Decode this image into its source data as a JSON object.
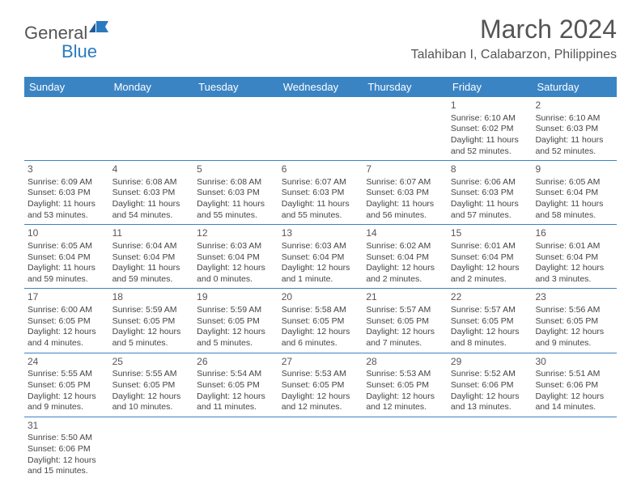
{
  "brand": {
    "name1": "General",
    "name2": "Blue"
  },
  "header": {
    "month": "March 2024",
    "location": "Talahiban I, Calabarzon, Philippines"
  },
  "colors": {
    "header_bg": "#3b84c4",
    "header_text": "#ffffff",
    "border": "#3b84c4",
    "text": "#444444",
    "title": "#555555"
  },
  "day_names": [
    "Sunday",
    "Monday",
    "Tuesday",
    "Wednesday",
    "Thursday",
    "Friday",
    "Saturday"
  ],
  "weeks": [
    [
      {
        "blank": true
      },
      {
        "blank": true
      },
      {
        "blank": true
      },
      {
        "blank": true
      },
      {
        "blank": true
      },
      {
        "n": "1",
        "sr": "Sunrise: 6:10 AM",
        "ss": "Sunset: 6:02 PM",
        "dl": "Daylight: 11 hours and 52 minutes."
      },
      {
        "n": "2",
        "sr": "Sunrise: 6:10 AM",
        "ss": "Sunset: 6:03 PM",
        "dl": "Daylight: 11 hours and 52 minutes."
      }
    ],
    [
      {
        "n": "3",
        "sr": "Sunrise: 6:09 AM",
        "ss": "Sunset: 6:03 PM",
        "dl": "Daylight: 11 hours and 53 minutes."
      },
      {
        "n": "4",
        "sr": "Sunrise: 6:08 AM",
        "ss": "Sunset: 6:03 PM",
        "dl": "Daylight: 11 hours and 54 minutes."
      },
      {
        "n": "5",
        "sr": "Sunrise: 6:08 AM",
        "ss": "Sunset: 6:03 PM",
        "dl": "Daylight: 11 hours and 55 minutes."
      },
      {
        "n": "6",
        "sr": "Sunrise: 6:07 AM",
        "ss": "Sunset: 6:03 PM",
        "dl": "Daylight: 11 hours and 55 minutes."
      },
      {
        "n": "7",
        "sr": "Sunrise: 6:07 AM",
        "ss": "Sunset: 6:03 PM",
        "dl": "Daylight: 11 hours and 56 minutes."
      },
      {
        "n": "8",
        "sr": "Sunrise: 6:06 AM",
        "ss": "Sunset: 6:03 PM",
        "dl": "Daylight: 11 hours and 57 minutes."
      },
      {
        "n": "9",
        "sr": "Sunrise: 6:05 AM",
        "ss": "Sunset: 6:04 PM",
        "dl": "Daylight: 11 hours and 58 minutes."
      }
    ],
    [
      {
        "n": "10",
        "sr": "Sunrise: 6:05 AM",
        "ss": "Sunset: 6:04 PM",
        "dl": "Daylight: 11 hours and 59 minutes."
      },
      {
        "n": "11",
        "sr": "Sunrise: 6:04 AM",
        "ss": "Sunset: 6:04 PM",
        "dl": "Daylight: 11 hours and 59 minutes."
      },
      {
        "n": "12",
        "sr": "Sunrise: 6:03 AM",
        "ss": "Sunset: 6:04 PM",
        "dl": "Daylight: 12 hours and 0 minutes."
      },
      {
        "n": "13",
        "sr": "Sunrise: 6:03 AM",
        "ss": "Sunset: 6:04 PM",
        "dl": "Daylight: 12 hours and 1 minute."
      },
      {
        "n": "14",
        "sr": "Sunrise: 6:02 AM",
        "ss": "Sunset: 6:04 PM",
        "dl": "Daylight: 12 hours and 2 minutes."
      },
      {
        "n": "15",
        "sr": "Sunrise: 6:01 AM",
        "ss": "Sunset: 6:04 PM",
        "dl": "Daylight: 12 hours and 2 minutes."
      },
      {
        "n": "16",
        "sr": "Sunrise: 6:01 AM",
        "ss": "Sunset: 6:04 PM",
        "dl": "Daylight: 12 hours and 3 minutes."
      }
    ],
    [
      {
        "n": "17",
        "sr": "Sunrise: 6:00 AM",
        "ss": "Sunset: 6:05 PM",
        "dl": "Daylight: 12 hours and 4 minutes."
      },
      {
        "n": "18",
        "sr": "Sunrise: 5:59 AM",
        "ss": "Sunset: 6:05 PM",
        "dl": "Daylight: 12 hours and 5 minutes."
      },
      {
        "n": "19",
        "sr": "Sunrise: 5:59 AM",
        "ss": "Sunset: 6:05 PM",
        "dl": "Daylight: 12 hours and 5 minutes."
      },
      {
        "n": "20",
        "sr": "Sunrise: 5:58 AM",
        "ss": "Sunset: 6:05 PM",
        "dl": "Daylight: 12 hours and 6 minutes."
      },
      {
        "n": "21",
        "sr": "Sunrise: 5:57 AM",
        "ss": "Sunset: 6:05 PM",
        "dl": "Daylight: 12 hours and 7 minutes."
      },
      {
        "n": "22",
        "sr": "Sunrise: 5:57 AM",
        "ss": "Sunset: 6:05 PM",
        "dl": "Daylight: 12 hours and 8 minutes."
      },
      {
        "n": "23",
        "sr": "Sunrise: 5:56 AM",
        "ss": "Sunset: 6:05 PM",
        "dl": "Daylight: 12 hours and 9 minutes."
      }
    ],
    [
      {
        "n": "24",
        "sr": "Sunrise: 5:55 AM",
        "ss": "Sunset: 6:05 PM",
        "dl": "Daylight: 12 hours and 9 minutes."
      },
      {
        "n": "25",
        "sr": "Sunrise: 5:55 AM",
        "ss": "Sunset: 6:05 PM",
        "dl": "Daylight: 12 hours and 10 minutes."
      },
      {
        "n": "26",
        "sr": "Sunrise: 5:54 AM",
        "ss": "Sunset: 6:05 PM",
        "dl": "Daylight: 12 hours and 11 minutes."
      },
      {
        "n": "27",
        "sr": "Sunrise: 5:53 AM",
        "ss": "Sunset: 6:05 PM",
        "dl": "Daylight: 12 hours and 12 minutes."
      },
      {
        "n": "28",
        "sr": "Sunrise: 5:53 AM",
        "ss": "Sunset: 6:05 PM",
        "dl": "Daylight: 12 hours and 12 minutes."
      },
      {
        "n": "29",
        "sr": "Sunrise: 5:52 AM",
        "ss": "Sunset: 6:06 PM",
        "dl": "Daylight: 12 hours and 13 minutes."
      },
      {
        "n": "30",
        "sr": "Sunrise: 5:51 AM",
        "ss": "Sunset: 6:06 PM",
        "dl": "Daylight: 12 hours and 14 minutes."
      }
    ],
    [
      {
        "n": "31",
        "sr": "Sunrise: 5:50 AM",
        "ss": "Sunset: 6:06 PM",
        "dl": "Daylight: 12 hours and 15 minutes."
      },
      {
        "blank": true
      },
      {
        "blank": true
      },
      {
        "blank": true
      },
      {
        "blank": true
      },
      {
        "blank": true
      },
      {
        "blank": true
      }
    ]
  ]
}
